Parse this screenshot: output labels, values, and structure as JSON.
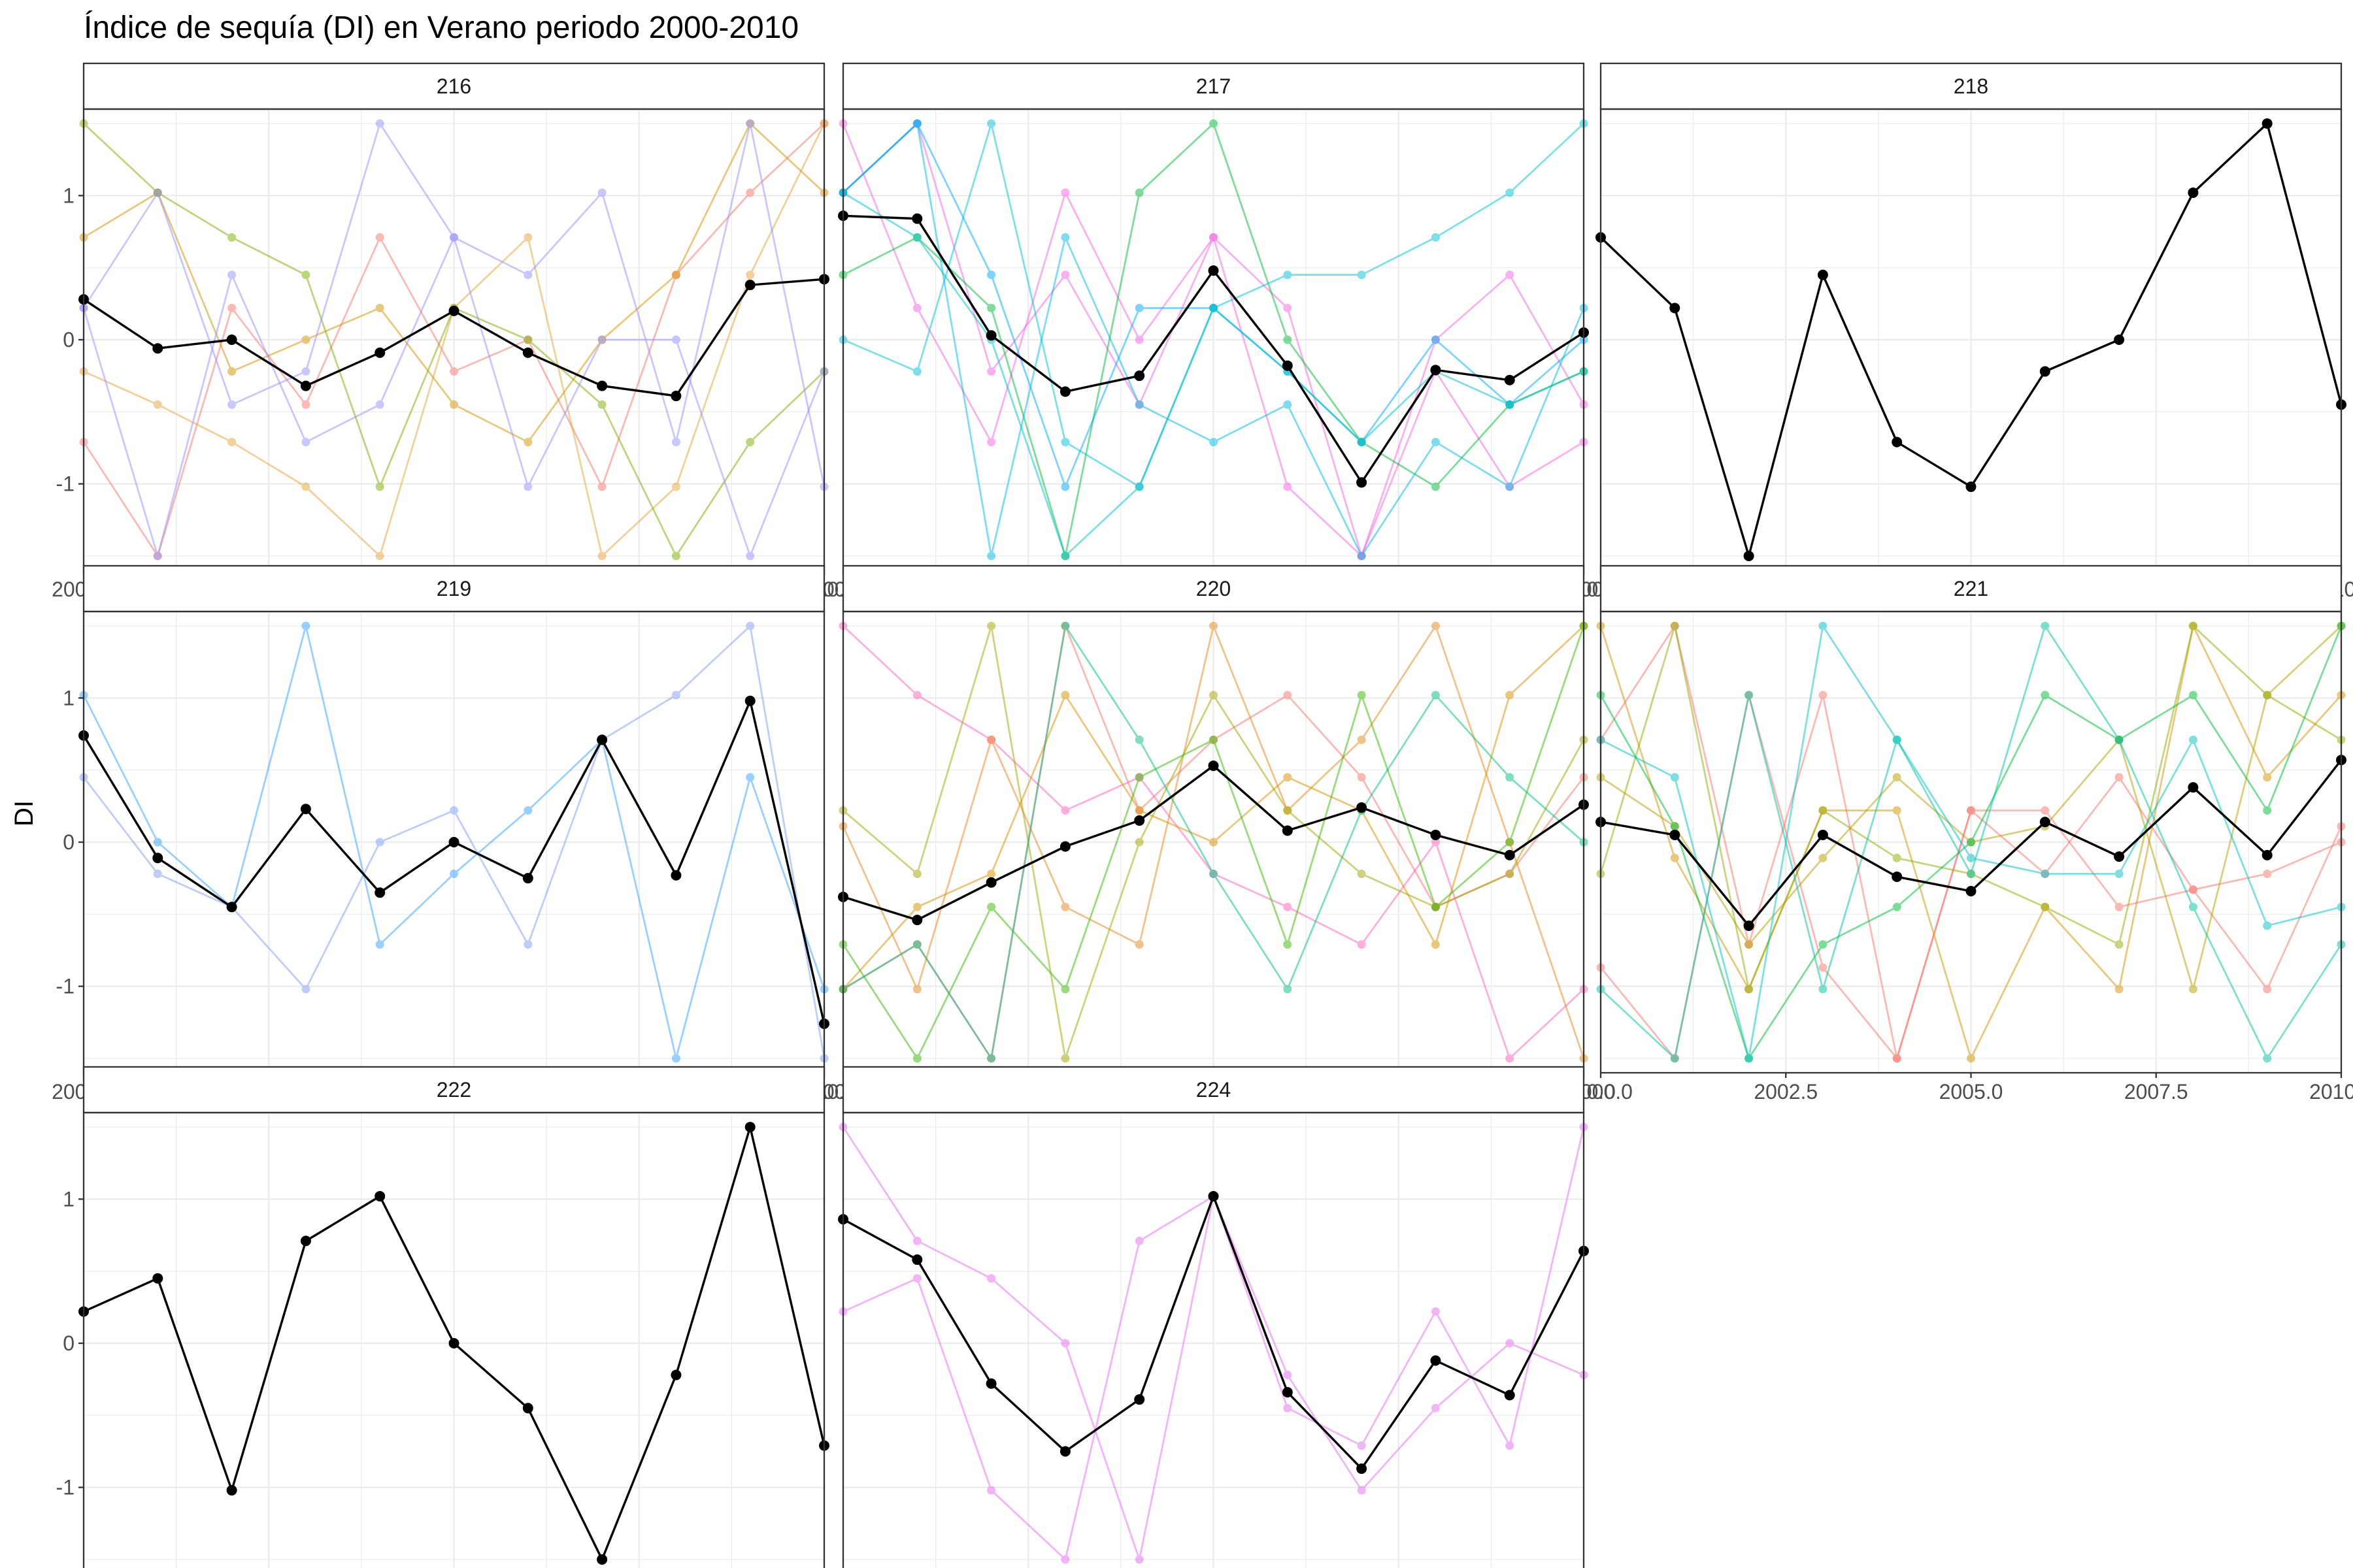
{
  "chart_data": {
    "type": "line",
    "title": "Índice de sequía (DI) en Verano periodo 2000-2010",
    "xlabel": "",
    "ylabel": "DI",
    "xlim": [
      2000,
      2010
    ],
    "ylim": [
      -1.6,
      1.6
    ],
    "x_ticks": [
      "2000.0",
      "2002.5",
      "2005.0",
      "2007.5",
      "2010.0"
    ],
    "y_ticks": [
      "-1",
      "0",
      "1"
    ],
    "grid": true,
    "legend": "none",
    "x": [
      2000,
      2001,
      2002,
      2003,
      2004,
      2005,
      2006,
      2007,
      2008,
      2009,
      2010
    ],
    "mean_color": "#000000",
    "panels": [
      {
        "label": "216",
        "mean": [
          0.28,
          -0.06,
          0.0,
          -0.32,
          -0.09,
          0.2,
          -0.09,
          -0.32,
          -0.39,
          0.38,
          0.42
        ],
        "series": [
          {
            "color": "#F8766D",
            "values": [
              -0.71,
              -1.5,
              0.22,
              -0.45,
              0.71,
              -0.22,
              0.0,
              -1.02,
              0.45,
              1.02,
              1.5
            ]
          },
          {
            "color": "#E7A33A",
            "values": [
              -0.22,
              -0.45,
              -0.71,
              -1.02,
              -1.5,
              0.22,
              0.71,
              -1.5,
              -1.02,
              0.45,
              1.5
            ]
          },
          {
            "color": "#D39200",
            "values": [
              0.71,
              1.02,
              -0.22,
              0.0,
              0.22,
              -0.45,
              -0.71,
              0.0,
              0.45,
              1.5,
              1.02
            ]
          },
          {
            "color": "#7CAE00",
            "values": [
              1.5,
              1.02,
              0.71,
              0.45,
              -1.02,
              0.22,
              0.0,
              -0.45,
              -1.5,
              -0.71,
              -0.22
            ]
          },
          {
            "color": "#9590FF",
            "values": [
              0.22,
              1.02,
              -0.45,
              -0.22,
              1.5,
              0.71,
              0.45,
              1.02,
              -0.71,
              1.5,
              -1.02
            ]
          },
          {
            "color": "#9590FF",
            "values": [
              0.22,
              -1.5,
              0.45,
              -0.71,
              -0.45,
              0.71,
              -1.02,
              0.0,
              0.0,
              -1.5,
              -0.22
            ]
          }
        ]
      },
      {
        "label": "217",
        "mean": [
          0.86,
          0.84,
          0.03,
          -0.36,
          -0.25,
          0.48,
          -0.18,
          -0.99,
          -0.21,
          -0.28,
          0.05
        ],
        "series": [
          {
            "color": "#F564E3",
            "values": [
              1.5,
              0.22,
              -0.71,
              1.02,
              0.0,
              0.71,
              -1.02,
              -1.5,
              0.0,
              0.45,
              -0.45
            ]
          },
          {
            "color": "#F564E3",
            "values": [
              1.02,
              1.5,
              -0.22,
              0.45,
              -0.45,
              0.71,
              0.22,
              -1.5,
              -0.22,
              -1.02,
              -0.71
            ]
          },
          {
            "color": "#00BA38",
            "values": [
              0.45,
              0.71,
              0.22,
              -1.5,
              1.02,
              1.5,
              0.0,
              -0.71,
              -1.02,
              -0.45,
              -0.22
            ]
          },
          {
            "color": "#00C1D5",
            "values": [
              0.0,
              -0.22,
              1.5,
              -0.71,
              -1.02,
              0.22,
              0.45,
              0.45,
              0.71,
              1.02,
              1.5
            ]
          },
          {
            "color": "#00B9E3",
            "values": [
              1.02,
              1.5,
              -1.5,
              0.71,
              -0.45,
              -0.71,
              -0.45,
              -1.5,
              -0.71,
              -1.02,
              0.22
            ]
          },
          {
            "color": "#00A9FF",
            "values": [
              1.02,
              1.5,
              0.45,
              -1.02,
              0.22,
              0.22,
              -0.22,
              -0.71,
              0.0,
              -0.45,
              0.0
            ]
          },
          {
            "color": "#00BFC4",
            "values": [
              1.02,
              0.71,
              0.0,
              -1.5,
              -1.02,
              0.22,
              -0.22,
              -0.71,
              -0.22,
              -0.45,
              -0.22
            ]
          }
        ]
      },
      {
        "label": "218",
        "mean": [
          0.71,
          0.22,
          -1.5,
          0.45,
          -0.71,
          -1.02,
          -0.22,
          0.0,
          1.02,
          1.5,
          -0.45
        ],
        "series": []
      },
      {
        "label": "219",
        "mean": [
          0.74,
          -0.11,
          -0.45,
          0.23,
          -0.35,
          0.0,
          -0.25,
          0.71,
          -0.23,
          0.98,
          -1.26
        ],
        "series": [
          {
            "color": "#35A2FF",
            "values": [
              1.02,
              0.0,
              -0.45,
              1.5,
              -0.71,
              -0.22,
              0.22,
              0.71,
              -1.5,
              0.45,
              -1.02
            ]
          },
          {
            "color": "#7F9CF5",
            "values": [
              0.45,
              -0.22,
              -0.45,
              -1.02,
              0.0,
              0.22,
              -0.71,
              0.71,
              1.02,
              1.5,
              -1.5
            ]
          }
        ]
      },
      {
        "label": "220",
        "mean": [
          -0.38,
          -0.54,
          -0.28,
          -0.03,
          0.15,
          0.53,
          0.08,
          0.24,
          0.05,
          -0.09,
          0.26
        ],
        "series": [
          {
            "color": "#FF62BC",
            "values": [
              1.5,
              1.02,
              0.71,
              0.22,
              0.45,
              -0.22,
              -0.45,
              -0.71,
              0.0,
              -1.5,
              -1.02
            ]
          },
          {
            "color": "#F8766D",
            "values": [
              -1.02,
              -0.71,
              -1.5,
              1.5,
              0.22,
              0.71,
              1.02,
              0.45,
              -0.45,
              -0.22,
              0.45
            ]
          },
          {
            "color": "#E7861B",
            "values": [
              0.11,
              -1.02,
              0.71,
              -0.45,
              -0.71,
              1.5,
              0.22,
              0.71,
              1.5,
              0.0,
              -1.5
            ]
          },
          {
            "color": "#D89000",
            "values": [
              -1.02,
              -0.45,
              -0.22,
              1.02,
              0.22,
              0.0,
              0.45,
              0.22,
              -0.71,
              1.02,
              1.5
            ]
          },
          {
            "color": "#A3A500",
            "values": [
              0.22,
              -0.22,
              1.5,
              -1.5,
              0.0,
              1.02,
              0.22,
              -0.22,
              -0.45,
              -0.22,
              0.71
            ]
          },
          {
            "color": "#39B600",
            "values": [
              -0.71,
              -1.5,
              -0.45,
              -1.02,
              0.45,
              0.71,
              -0.71,
              1.02,
              -0.45,
              0.0,
              1.5
            ]
          },
          {
            "color": "#00BF7D",
            "values": [
              -1.02,
              -0.71,
              -1.5,
              1.5,
              0.71,
              -0.22,
              -1.02,
              0.22,
              1.02,
              0.45,
              0.0
            ]
          }
        ]
      },
      {
        "label": "221",
        "mean": [
          0.14,
          0.05,
          -0.58,
          0.05,
          -0.24,
          -0.34,
          0.14,
          -0.1,
          0.38,
          -0.09,
          0.57
        ],
        "series": [
          {
            "color": "#F8766D",
            "values": [
              -0.87,
              -1.5,
              1.02,
              -0.87,
              -1.5,
              0.22,
              0.22,
              -0.45,
              -0.33,
              -1.02,
              0.11
            ]
          },
          {
            "color": "#F8766D",
            "values": [
              0.71,
              1.5,
              -0.71,
              1.02,
              -1.5,
              0.22,
              -0.22,
              0.45,
              -0.33,
              -0.22,
              0.0
            ]
          },
          {
            "color": "#D39200",
            "values": [
              1.5,
              -0.11,
              -1.02,
              0.22,
              0.22,
              -1.5,
              -0.45,
              -1.02,
              1.5,
              0.45,
              1.02
            ]
          },
          {
            "color": "#B79F00",
            "values": [
              0.45,
              0.11,
              -0.71,
              -0.11,
              0.45,
              0.0,
              0.11,
              0.71,
              -1.02,
              1.02,
              1.5
            ]
          },
          {
            "color": "#93AA00",
            "values": [
              -0.22,
              1.5,
              -1.02,
              0.22,
              -0.11,
              -0.22,
              -0.45,
              -0.71,
              1.5,
              1.02,
              0.71
            ]
          },
          {
            "color": "#00BA38",
            "values": [
              1.02,
              0.11,
              -1.5,
              -0.71,
              -0.45,
              0.0,
              1.02,
              0.71,
              1.02,
              0.22,
              1.5
            ]
          },
          {
            "color": "#00C19F",
            "values": [
              -1.02,
              -1.5,
              1.02,
              -1.02,
              0.71,
              -0.22,
              1.5,
              0.71,
              -0.45,
              -1.5,
              -0.71
            ]
          },
          {
            "color": "#00BFC4",
            "values": [
              0.71,
              0.45,
              -1.5,
              1.5,
              0.71,
              -0.11,
              -0.22,
              -0.22,
              0.71,
              -0.58,
              -0.45
            ]
          }
        ]
      },
      {
        "label": "222",
        "mean": [
          0.22,
          0.45,
          -1.02,
          0.71,
          1.02,
          0.0,
          -0.45,
          -1.5,
          -0.22,
          1.5,
          -0.71
        ],
        "series": []
      },
      {
        "label": "224",
        "mean": [
          0.86,
          0.58,
          -0.28,
          -0.75,
          -0.39,
          1.02,
          -0.34,
          -0.87,
          -0.12,
          -0.36,
          0.64
        ],
        "series": [
          {
            "color": "#E76BF3",
            "values": [
              1.5,
              0.71,
              0.45,
              0.0,
              -1.5,
              1.02,
              -0.45,
              -0.71,
              0.22,
              -0.71,
              1.5
            ]
          },
          {
            "color": "#E76BF3",
            "values": [
              0.22,
              0.45,
              -1.02,
              -1.5,
              0.71,
              1.02,
              -0.22,
              -1.02,
              -0.45,
              0.0,
              -0.22
            ]
          }
        ]
      }
    ]
  }
}
